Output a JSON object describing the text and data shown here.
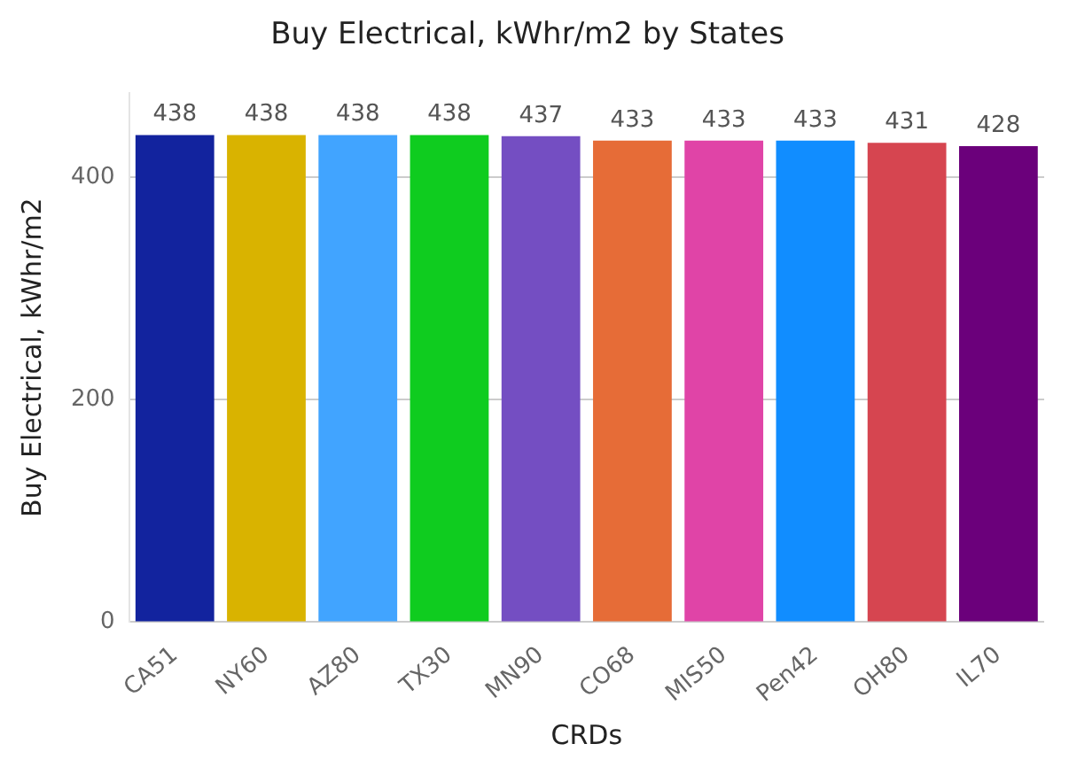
{
  "chart_data": {
    "type": "bar",
    "title": "Buy Electrical, kWhr/m2 by States",
    "xlabel": "CRDs",
    "ylabel": "Buy Electrical, kWhr/m2",
    "categories": [
      "CA51",
      "NY60",
      "AZ80",
      "TX30",
      "MN90",
      "CO68",
      "MIS50",
      "Pen42",
      "OH80",
      "IL70"
    ],
    "values": [
      438,
      438,
      438,
      438,
      437,
      433,
      433,
      433,
      431,
      428
    ],
    "colors": [
      "#12239e",
      "#d9b300",
      "#41a4ff",
      "#0fcc1f",
      "#744ec2",
      "#e66c37",
      "#e044a7",
      "#118dff",
      "#d64550",
      "#6b007b"
    ],
    "ylim": [
      0,
      476
    ],
    "yticks": [
      0,
      200,
      400
    ],
    "grid": "y",
    "data_labels": true
  }
}
